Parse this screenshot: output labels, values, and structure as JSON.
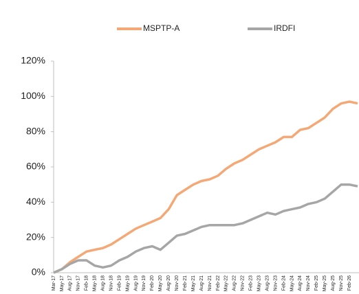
{
  "chart_data": {
    "type": "line",
    "categories": [
      "Mar-17",
      "May-17",
      "Aug-17",
      "Nov-17",
      "Feb-18",
      "May-18",
      "Aug-18",
      "Nov-18",
      "Feb-19",
      "May-19",
      "Aug-19",
      "Nov-19",
      "Feb-20",
      "May-20",
      "Aug-20",
      "Nov-20",
      "Feb-21",
      "May-21",
      "Aug-21",
      "Nov-21",
      "Feb-22",
      "May-22",
      "Aug-22",
      "Nov-22",
      "Feb-23",
      "May-23",
      "Aug-23",
      "Nov-23",
      "Feb-24",
      "May-24",
      "Aug-24",
      "Nov-24",
      "Feb-25",
      "May-25",
      "Aug-25",
      "Nov-25",
      "Feb-26",
      null
    ],
    "series": [
      {
        "name": "MSPTP-A",
        "color": "#f4a876",
        "values": [
          0,
          2,
          6,
          9,
          12,
          13,
          14,
          16,
          19,
          22,
          25,
          27,
          29,
          31,
          36,
          44,
          47,
          50,
          52,
          53,
          55,
          59,
          62,
          64,
          67,
          70,
          72,
          74,
          77,
          77,
          81,
          82,
          85,
          88,
          93,
          96,
          97,
          96
        ]
      },
      {
        "name": "IRDFI",
        "color": "#a6a6a6",
        "values": [
          0,
          2,
          5,
          7,
          7,
          4,
          3,
          4,
          7,
          9,
          12,
          14,
          15,
          13,
          17,
          21,
          22,
          24,
          26,
          27,
          27,
          27,
          27,
          28,
          30,
          32,
          34,
          33,
          35,
          36,
          37,
          39,
          40,
          42,
          46,
          50,
          50,
          49
        ]
      }
    ],
    "ylim": [
      0,
      120
    ],
    "yticks": [
      {
        "value": 0,
        "label": "0%"
      },
      {
        "value": 20,
        "label": "20%"
      },
      {
        "value": 40,
        "label": "40%"
      },
      {
        "value": 60,
        "label": "60%"
      },
      {
        "value": 80,
        "label": "80%"
      },
      {
        "value": 100,
        "label": "100%"
      },
      {
        "value": 120,
        "label": "120%"
      }
    ],
    "legend": "top"
  }
}
